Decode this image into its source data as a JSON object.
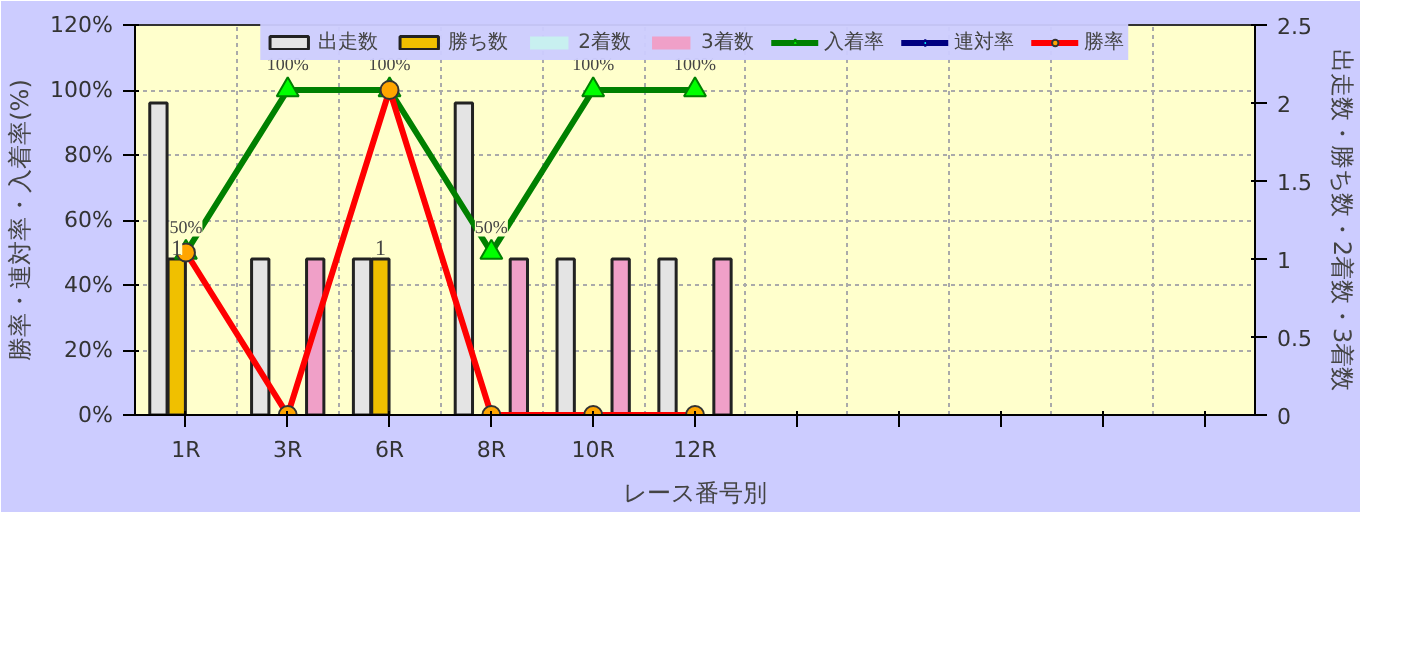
{
  "chart_data": {
    "type": "bar",
    "xlabel": "レース番号別",
    "ylabel": "勝率・連対率・入着率(%)",
    "y2label": "出走数・勝ち数・2着数・3着数",
    "categories": [
      "1R",
      "3R",
      "6R",
      "8R",
      "10R",
      "12R",
      null,
      null,
      null,
      null,
      null
    ],
    "series": [
      {
        "name": "出走数",
        "axis": "y2",
        "color": "#e4e4e4",
        "values": [
          2,
          1,
          1,
          2,
          1,
          1,
          null,
          null,
          null,
          null,
          null
        ]
      },
      {
        "name": "勝ち数",
        "axis": "y2",
        "color": "#f0c000",
        "values": [
          1,
          0,
          1,
          0,
          0,
          0,
          null,
          null,
          null,
          null,
          null
        ],
        "value_labels": [
          "1",
          null,
          "1",
          null,
          null,
          null,
          null,
          null,
          null,
          null,
          null
        ]
      },
      {
        "name": "2着数",
        "axis": "y2",
        "color": "#c8f0f0",
        "values": [
          0,
          0,
          0,
          0,
          0,
          0,
          null,
          null,
          null,
          null,
          null
        ]
      },
      {
        "name": "3着数",
        "axis": "y2",
        "color": "#f0a0c8",
        "values": [
          0,
          1,
          0,
          1,
          1,
          1,
          null,
          null,
          null,
          null,
          null
        ]
      },
      {
        "name": "入着率",
        "type": "line",
        "color": "#008000",
        "marker": "triangle",
        "values": [
          50,
          100,
          100,
          50,
          100,
          100,
          null,
          null,
          null,
          null,
          null
        ],
        "value_labels": [
          null,
          "100%",
          null,
          "50%",
          "100%",
          "100%",
          null,
          null,
          null,
          null,
          null
        ]
      },
      {
        "name": "連対率",
        "type": "line",
        "color": "#000080",
        "marker": "diamond",
        "values": [
          null,
          null,
          null,
          null,
          null,
          null,
          null,
          null,
          null,
          null,
          null
        ]
      },
      {
        "name": "勝率",
        "type": "line",
        "color": "#ff0000",
        "marker": "circle",
        "values": [
          50,
          0,
          100,
          0,
          0,
          0,
          null,
          null,
          null,
          null,
          null
        ],
        "value_labels": [
          "50%",
          null,
          "100%",
          null,
          null,
          null,
          null,
          null,
          null,
          null,
          null
        ]
      }
    ],
    "ylim": [
      0,
      120
    ],
    "yticks": [
      {
        "value": 0,
        "label": "0%"
      },
      {
        "value": 20,
        "label": "20%"
      },
      {
        "value": 40,
        "label": "40%"
      },
      {
        "value": 60,
        "label": "60%"
      },
      {
        "value": 80,
        "label": "80%"
      },
      {
        "value": 100,
        "label": "100%"
      },
      {
        "value": 120,
        "label": "120%"
      }
    ],
    "y2lim": [
      0,
      2.5
    ],
    "y2ticks": [
      0,
      0.5,
      1,
      1.5,
      2,
      2.5
    ],
    "grid": true,
    "legend": "top"
  }
}
